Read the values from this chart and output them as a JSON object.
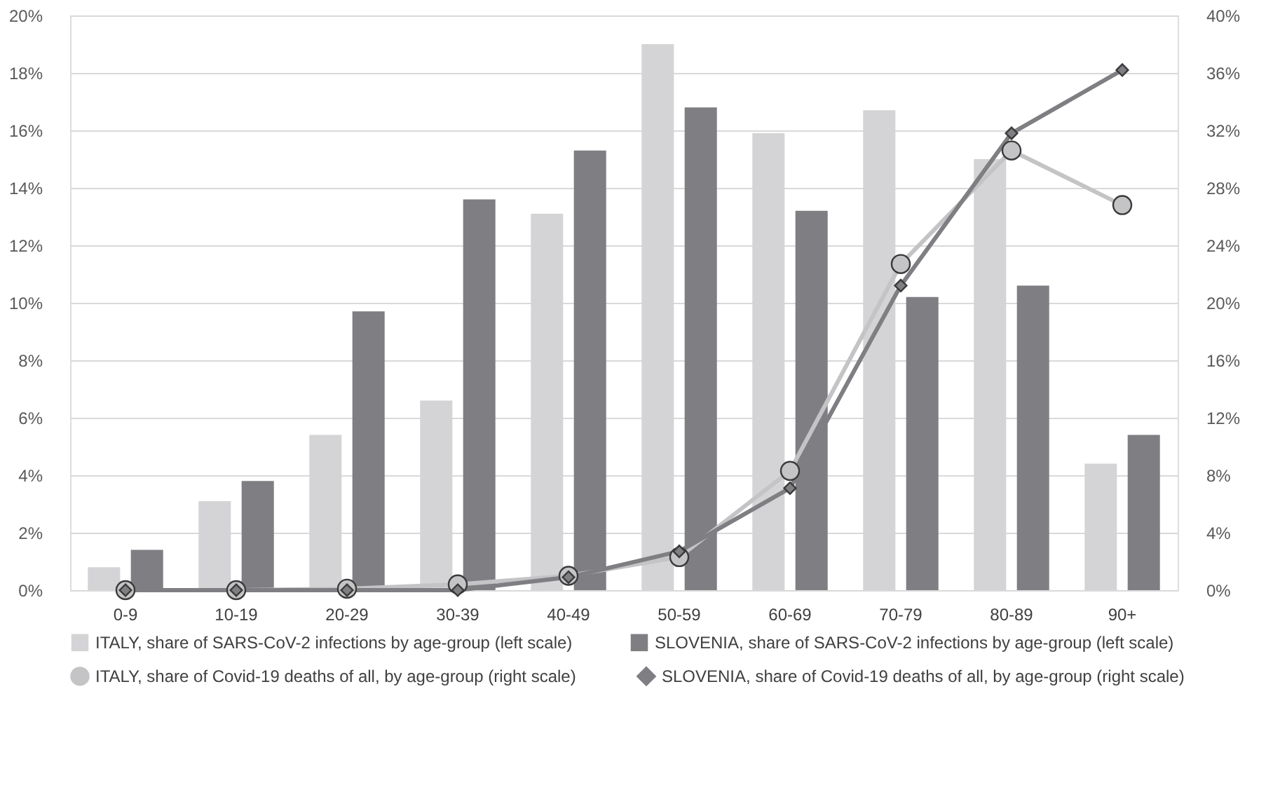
{
  "chart_data": {
    "type": "bar",
    "categories": [
      "0-9",
      "10-19",
      "20-29",
      "30-39",
      "40-49",
      "50-59",
      "60-69",
      "70-79",
      "80-89",
      "90+"
    ],
    "series": [
      {
        "name": "ITALY, share of SARS-CoV-2 infections by age-group (left scale)",
        "color": "#d4d4d6",
        "values": [
          0.8,
          3.1,
          5.4,
          6.6,
          13.1,
          19.0,
          15.9,
          16.7,
          15.0,
          4.4
        ]
      },
      {
        "name": "SLOVENIA, share of SARS-CoV-2 infections by age-group (left scale)",
        "color": "#7f7f83",
        "values": [
          1.4,
          3.8,
          9.7,
          13.6,
          15.3,
          16.8,
          13.2,
          10.2,
          10.6,
          5.4
        ]
      },
      {
        "name": "ITALY, share of Covid-19 deaths of all, by age-group (right scale)",
        "type": "line",
        "axis": "y2",
        "marker": "circle",
        "color": "#c4c4c6",
        "values": [
          0,
          0,
          0.1,
          0.4,
          1.0,
          2.3,
          8.3,
          22.7,
          30.6,
          26.8
        ]
      },
      {
        "name": "SLOVENIA, share of Covid-19 deaths of all, by age-group (right scale)",
        "type": "line",
        "axis": "y2",
        "marker": "diamond",
        "color": "#7f7f83",
        "values": [
          0,
          0,
          0,
          0,
          0.9,
          2.7,
          7.1,
          21.2,
          31.8,
          36.2
        ]
      }
    ],
    "ylim": [
      0,
      20
    ],
    "yticks": [
      {
        "value": 0,
        "label": "0%"
      },
      {
        "value": 2,
        "label": "2%"
      },
      {
        "value": 4,
        "label": "4%"
      },
      {
        "value": 6,
        "label": "6%"
      },
      {
        "value": 8,
        "label": "8%"
      },
      {
        "value": 10,
        "label": "10%"
      },
      {
        "value": 12,
        "label": "12%"
      },
      {
        "value": 14,
        "label": "14%"
      },
      {
        "value": 16,
        "label": "16%"
      },
      {
        "value": 18,
        "label": "18%"
      },
      {
        "value": 20,
        "label": "20%"
      }
    ],
    "y2lim": [
      0,
      40
    ],
    "y2ticks": [
      {
        "value": 0,
        "label": "0%"
      },
      {
        "value": 4,
        "label": "4%"
      },
      {
        "value": 8,
        "label": "8%"
      },
      {
        "value": 12,
        "label": "12%"
      },
      {
        "value": 16,
        "label": "16%"
      },
      {
        "value": 20,
        "label": "20%"
      },
      {
        "value": 24,
        "label": "24%"
      },
      {
        "value": 28,
        "label": "28%"
      },
      {
        "value": 32,
        "label": "32%"
      },
      {
        "value": 36,
        "label": "36%"
      },
      {
        "value": 40,
        "label": "40%"
      }
    ],
    "grid": "y",
    "legend": "bottom"
  }
}
